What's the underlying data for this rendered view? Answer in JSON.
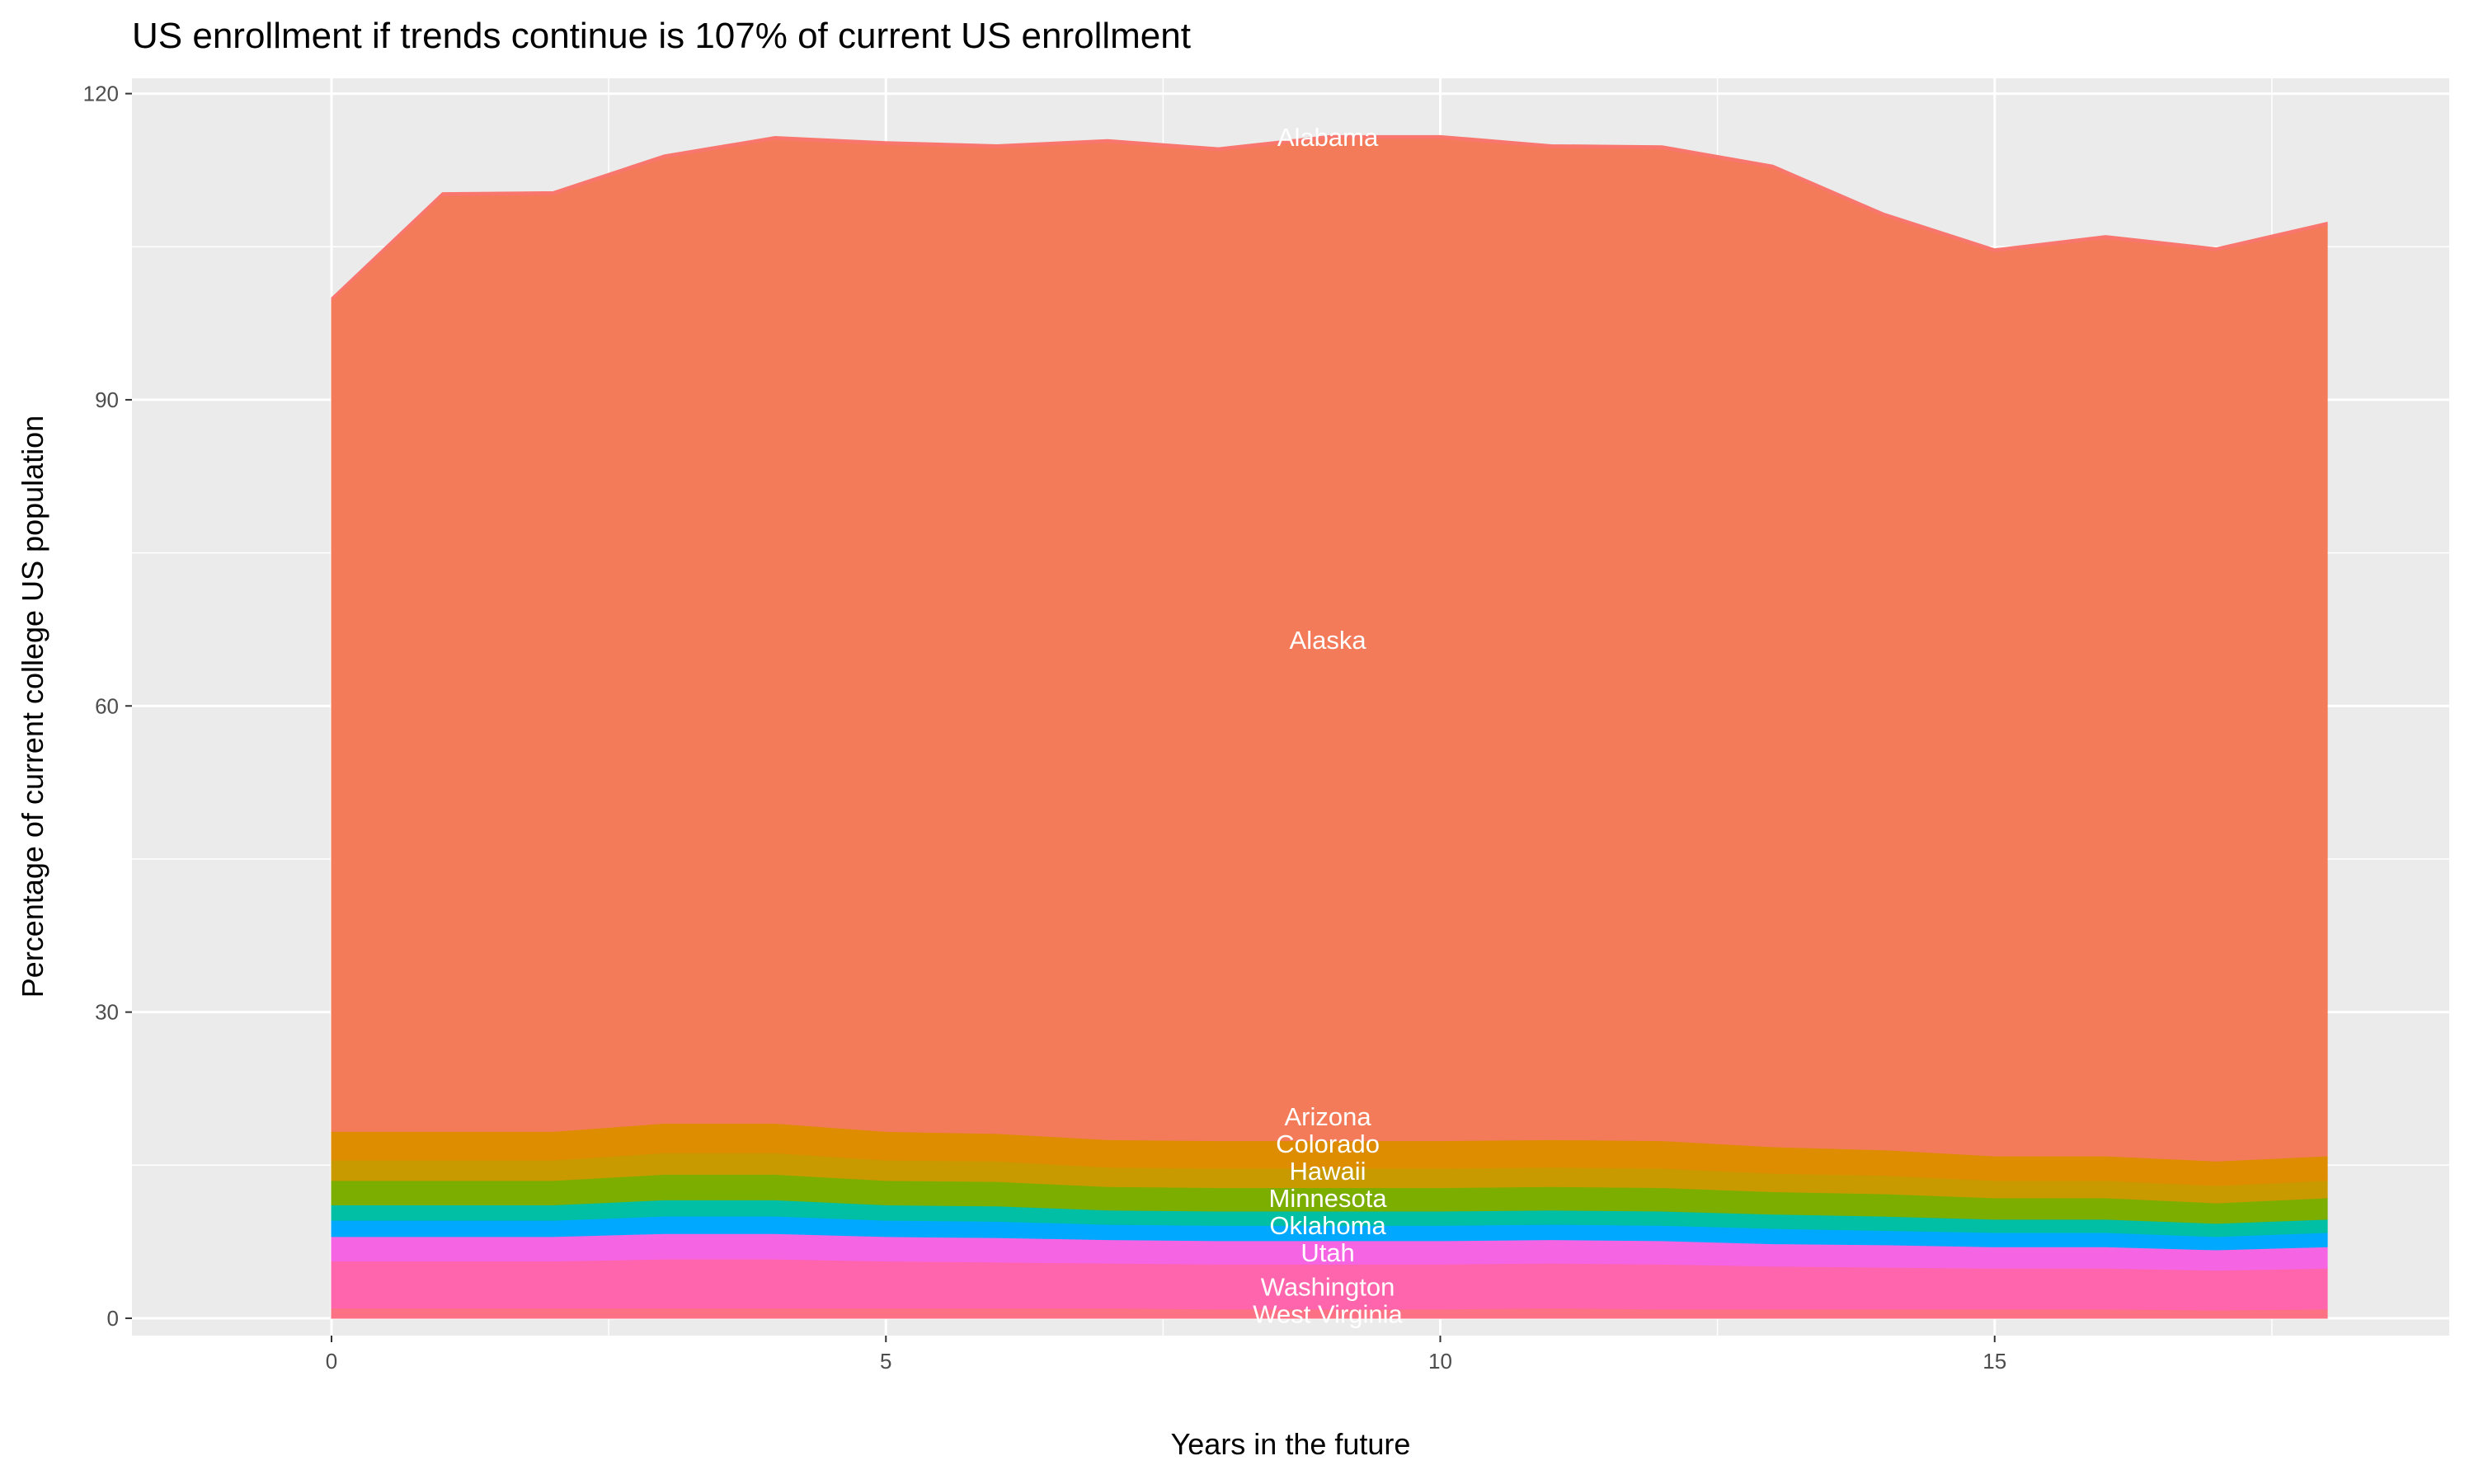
{
  "chart_data": {
    "type": "area",
    "stacked": true,
    "title": "US enrollment if trends continue is 107% of current US enrollment",
    "xlabel": "Years in the future",
    "ylabel": "Percentage of current college US population",
    "xlim": [
      -1.8,
      19.1
    ],
    "ylim": [
      -1.7,
      121.5
    ],
    "xticks": [
      0,
      5,
      10,
      15
    ],
    "yticks": [
      0,
      30,
      60,
      90,
      120
    ],
    "grid": true,
    "x": [
      0,
      1,
      2,
      3,
      4,
      5,
      6,
      7,
      8,
      9,
      10,
      11,
      12,
      13,
      14,
      15,
      16,
      17,
      18
    ],
    "label_x": 9,
    "series": [
      {
        "name": "West Virginia",
        "color": "#FC7183",
        "values": [
          1,
          1,
          1,
          1,
          1,
          1,
          1,
          1,
          0.9,
          0.9,
          0.9,
          1,
          0.9,
          0.9,
          0.9,
          0.9,
          0.9,
          0.8,
          0.9
        ]
      },
      {
        "name": "Washington",
        "color": "#FF65AC",
        "values": [
          4.6,
          4.6,
          4.6,
          4.8,
          4.8,
          4.6,
          4.5,
          4.4,
          4.4,
          4.4,
          4.4,
          4.4,
          4.4,
          4.2,
          4.1,
          4.0,
          4.0,
          3.9,
          4.0
        ]
      },
      {
        "name": "Utah",
        "color": "#F564E3",
        "values": [
          2.4,
          2.4,
          2.4,
          2.5,
          2.5,
          2.4,
          2.4,
          2.3,
          2.3,
          2.3,
          2.3,
          2.3,
          2.3,
          2.2,
          2.2,
          2.1,
          2.1,
          2.0,
          2.1
        ]
      },
      {
        "name": "Oklahoma",
        "color": "#00A9FF",
        "values": [
          1.6,
          1.6,
          1.6,
          1.7,
          1.7,
          1.6,
          1.6,
          1.5,
          1.5,
          1.5,
          1.5,
          1.5,
          1.5,
          1.5,
          1.4,
          1.4,
          1.4,
          1.3,
          1.4
        ]
      },
      {
        "name": "Minnesota",
        "color": "#00BFA4",
        "values": [
          1.5,
          1.5,
          1.5,
          1.6,
          1.6,
          1.5,
          1.5,
          1.4,
          1.4,
          1.4,
          1.4,
          1.4,
          1.4,
          1.4,
          1.4,
          1.3,
          1.3,
          1.3,
          1.3
        ]
      },
      {
        "name": "Hawaii",
        "color": "#7CAE00",
        "values": [
          2.4,
          2.4,
          2.4,
          2.5,
          2.5,
          2.4,
          2.4,
          2.3,
          2.3,
          2.3,
          2.3,
          2.3,
          2.3,
          2.2,
          2.2,
          2.1,
          2.1,
          2.0,
          2.1
        ]
      },
      {
        "name": "Colorado",
        "color": "#C99A00",
        "values": [
          2.0,
          2.0,
          2.0,
          2.1,
          2.1,
          2.0,
          2.0,
          1.9,
          1.9,
          1.9,
          1.9,
          1.9,
          1.9,
          1.8,
          1.8,
          1.7,
          1.7,
          1.7,
          1.7
        ]
      },
      {
        "name": "Arizona",
        "color": "#DE8C00",
        "values": [
          2.8,
          2.8,
          2.8,
          2.9,
          2.9,
          2.8,
          2.7,
          2.7,
          2.7,
          2.7,
          2.7,
          2.7,
          2.7,
          2.6,
          2.5,
          2.4,
          2.4,
          2.4,
          2.4
        ]
      },
      {
        "name": "Alaska",
        "color": "#F37B59",
        "values": [
          81.4,
          91.7,
          91.8,
          94.6,
          96.4,
          96.7,
          96.6,
          97.7,
          97.0,
          98.2,
          98.2,
          97.2,
          97.2,
          95.9,
          91.5,
          88.6,
          89.9,
          89.2,
          91.2
        ]
      },
      {
        "name": "Alabama",
        "color": "#F8766D",
        "values": [
          0.3,
          0.3,
          0.3,
          0.3,
          0.3,
          0.3,
          0.3,
          0.3,
          0.3,
          0.3,
          0.3,
          0.3,
          0.3,
          0.3,
          0.3,
          0.3,
          0.3,
          0.3,
          0.3
        ]
      }
    ]
  }
}
